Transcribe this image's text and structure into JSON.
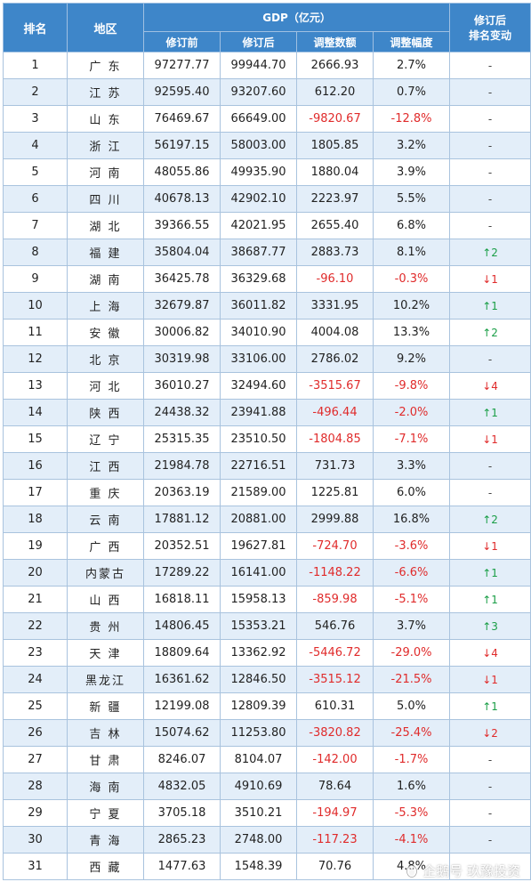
{
  "headers": {
    "rank": "排名",
    "region": "地区",
    "gdp_group": "GDP（亿元）",
    "before": "修订前",
    "after": "修订后",
    "adjust_amount": "调整数额",
    "adjust_pct": "调整幅度",
    "rank_change_line1": "修订后",
    "rank_change_line2": "排名变动"
  },
  "rows": [
    {
      "rank": "1",
      "region": "广 东",
      "before": "97277.77",
      "after": "99944.70",
      "amount": "2666.93",
      "pct": "2.7%",
      "change": "-",
      "dir": "same"
    },
    {
      "rank": "2",
      "region": "江 苏",
      "before": "92595.40",
      "after": "93207.60",
      "amount": "612.20",
      "pct": "0.7%",
      "change": "-",
      "dir": "same"
    },
    {
      "rank": "3",
      "region": "山 东",
      "before": "76469.67",
      "after": "66649.00",
      "amount": "-9820.67",
      "pct": "-12.8%",
      "change": "-",
      "dir": "same"
    },
    {
      "rank": "4",
      "region": "浙 江",
      "before": "56197.15",
      "after": "58003.00",
      "amount": "1805.85",
      "pct": "3.2%",
      "change": "-",
      "dir": "same"
    },
    {
      "rank": "5",
      "region": "河 南",
      "before": "48055.86",
      "after": "49935.90",
      "amount": "1880.04",
      "pct": "3.9%",
      "change": "-",
      "dir": "same"
    },
    {
      "rank": "6",
      "region": "四 川",
      "before": "40678.13",
      "after": "42902.10",
      "amount": "2223.97",
      "pct": "5.5%",
      "change": "-",
      "dir": "same"
    },
    {
      "rank": "7",
      "region": "湖 北",
      "before": "39366.55",
      "after": "42021.95",
      "amount": "2655.40",
      "pct": "6.8%",
      "change": "-",
      "dir": "same"
    },
    {
      "rank": "8",
      "region": "福 建",
      "before": "35804.04",
      "after": "38687.77",
      "amount": "2883.73",
      "pct": "8.1%",
      "change": "↑2",
      "dir": "up"
    },
    {
      "rank": "9",
      "region": "湖 南",
      "before": "36425.78",
      "after": "36329.68",
      "amount": "-96.10",
      "pct": "-0.3%",
      "change": "↓1",
      "dir": "down"
    },
    {
      "rank": "10",
      "region": "上 海",
      "before": "32679.87",
      "after": "36011.82",
      "amount": "3331.95",
      "pct": "10.2%",
      "change": "↑1",
      "dir": "up"
    },
    {
      "rank": "11",
      "region": "安 徽",
      "before": "30006.82",
      "after": "34010.90",
      "amount": "4004.08",
      "pct": "13.3%",
      "change": "↑2",
      "dir": "up"
    },
    {
      "rank": "12",
      "region": "北 京",
      "before": "30319.98",
      "after": "33106.00",
      "amount": "2786.02",
      "pct": "9.2%",
      "change": "-",
      "dir": "same"
    },
    {
      "rank": "13",
      "region": "河 北",
      "before": "36010.27",
      "after": "32494.60",
      "amount": "-3515.67",
      "pct": "-9.8%",
      "change": "↓4",
      "dir": "down"
    },
    {
      "rank": "14",
      "region": "陕 西",
      "before": "24438.32",
      "after": "23941.88",
      "amount": "-496.44",
      "pct": "-2.0%",
      "change": "↑1",
      "dir": "up"
    },
    {
      "rank": "15",
      "region": "辽 宁",
      "before": "25315.35",
      "after": "23510.50",
      "amount": "-1804.85",
      "pct": "-7.1%",
      "change": "↓1",
      "dir": "down"
    },
    {
      "rank": "16",
      "region": "江 西",
      "before": "21984.78",
      "after": "22716.51",
      "amount": "731.73",
      "pct": "3.3%",
      "change": "-",
      "dir": "same"
    },
    {
      "rank": "17",
      "region": "重 庆",
      "before": "20363.19",
      "after": "21589.00",
      "amount": "1225.81",
      "pct": "6.0%",
      "change": "-",
      "dir": "same"
    },
    {
      "rank": "18",
      "region": "云 南",
      "before": "17881.12",
      "after": "20881.00",
      "amount": "2999.88",
      "pct": "16.8%",
      "change": "↑2",
      "dir": "up"
    },
    {
      "rank": "19",
      "region": "广 西",
      "before": "20352.51",
      "after": "19627.81",
      "amount": "-724.70",
      "pct": "-3.6%",
      "change": "↓1",
      "dir": "down"
    },
    {
      "rank": "20",
      "region": "内蒙古",
      "before": "17289.22",
      "after": "16141.00",
      "amount": "-1148.22",
      "pct": "-6.6%",
      "change": "↑1",
      "dir": "up"
    },
    {
      "rank": "21",
      "region": "山 西",
      "before": "16818.11",
      "after": "15958.13",
      "amount": "-859.98",
      "pct": "-5.1%",
      "change": "↑1",
      "dir": "up"
    },
    {
      "rank": "22",
      "region": "贵 州",
      "before": "14806.45",
      "after": "15353.21",
      "amount": "546.76",
      "pct": "3.7%",
      "change": "↑3",
      "dir": "up"
    },
    {
      "rank": "23",
      "region": "天 津",
      "before": "18809.64",
      "after": "13362.92",
      "amount": "-5446.72",
      "pct": "-29.0%",
      "change": "↓4",
      "dir": "down"
    },
    {
      "rank": "24",
      "region": "黑龙江",
      "before": "16361.62",
      "after": "12846.50",
      "amount": "-3515.12",
      "pct": "-21.5%",
      "change": "↓1",
      "dir": "down"
    },
    {
      "rank": "25",
      "region": "新 疆",
      "before": "12199.08",
      "after": "12809.39",
      "amount": "610.31",
      "pct": "5.0%",
      "change": "↑1",
      "dir": "up"
    },
    {
      "rank": "26",
      "region": "吉 林",
      "before": "15074.62",
      "after": "11253.80",
      "amount": "-3820.82",
      "pct": "-25.4%",
      "change": "↓2",
      "dir": "down"
    },
    {
      "rank": "27",
      "region": "甘 肃",
      "before": "8246.07",
      "after": "8104.07",
      "amount": "-142.00",
      "pct": "-1.7%",
      "change": "-",
      "dir": "same"
    },
    {
      "rank": "28",
      "region": "海 南",
      "before": "4832.05",
      "after": "4910.69",
      "amount": "78.64",
      "pct": "1.6%",
      "change": "-",
      "dir": "same"
    },
    {
      "rank": "29",
      "region": "宁 夏",
      "before": "3705.18",
      "after": "3510.21",
      "amount": "-194.97",
      "pct": "-5.3%",
      "change": "-",
      "dir": "same"
    },
    {
      "rank": "30",
      "region": "青 海",
      "before": "2865.23",
      "after": "2748.00",
      "amount": "-117.23",
      "pct": "-4.1%",
      "change": "-",
      "dir": "same"
    },
    {
      "rank": "31",
      "region": "西 藏",
      "before": "1477.63",
      "after": "1548.39",
      "amount": "70.76",
      "pct": "4.8%",
      "change": "",
      "dir": "same"
    }
  ],
  "watermark": {
    "text": "企鹅号 玖豫投资",
    "icon": "penguin-icon"
  },
  "colors": {
    "header_bg": "#3e86c9",
    "stripe": "#e3eef9",
    "negative": "#e02b2b",
    "up": "#1a9e47",
    "down": "#e02b2b",
    "border": "#a9c3de"
  }
}
